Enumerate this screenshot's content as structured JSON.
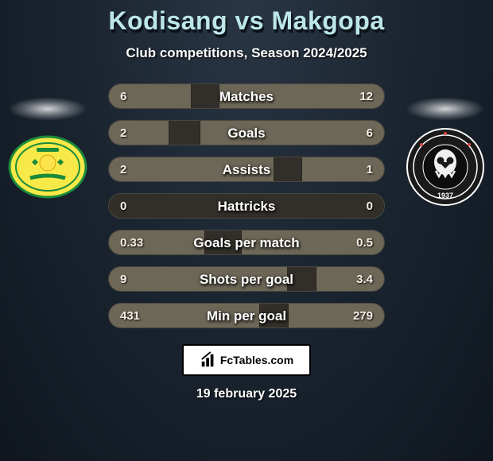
{
  "title": "Kodisang vs Makgopa",
  "subtitle": "Club competitions, Season 2024/2025",
  "date": "19 february 2025",
  "footer_brand": "FcTables.com",
  "colors": {
    "title_color": "#bce6e8",
    "bar_bg": "#322f2a",
    "bar_fill": "#6d6757",
    "page_bg_inner": "#2a3645",
    "page_bg_outer": "#0f1620",
    "text_white": "#ffffff"
  },
  "badge_left": {
    "name": "Mamelodi Sundowns",
    "bg": "#f7e948",
    "accent": "#1b8a3a"
  },
  "badge_right": {
    "name": "Orlando Pirates",
    "bg": "#1a1a1a",
    "accent": "#ffffff",
    "year": "1937"
  },
  "stats": [
    {
      "label": "Matches",
      "left_val": "6",
      "right_val": "12",
      "left_pct": 30,
      "right_pct": 60
    },
    {
      "label": "Goals",
      "left_val": "2",
      "right_val": "6",
      "left_pct": 22,
      "right_pct": 67
    },
    {
      "label": "Assists",
      "left_val": "2",
      "right_val": "1",
      "left_pct": 60,
      "right_pct": 30
    },
    {
      "label": "Hattricks",
      "left_val": "0",
      "right_val": "0",
      "left_pct": 0,
      "right_pct": 0
    },
    {
      "label": "Goals per match",
      "left_val": "0.33",
      "right_val": "0.5",
      "left_pct": 35,
      "right_pct": 52
    },
    {
      "label": "Shots per goal",
      "left_val": "9",
      "right_val": "3.4",
      "left_pct": 65,
      "right_pct": 25
    },
    {
      "label": "Min per goal",
      "left_val": "431",
      "right_val": "279",
      "left_pct": 55,
      "right_pct": 35
    }
  ]
}
